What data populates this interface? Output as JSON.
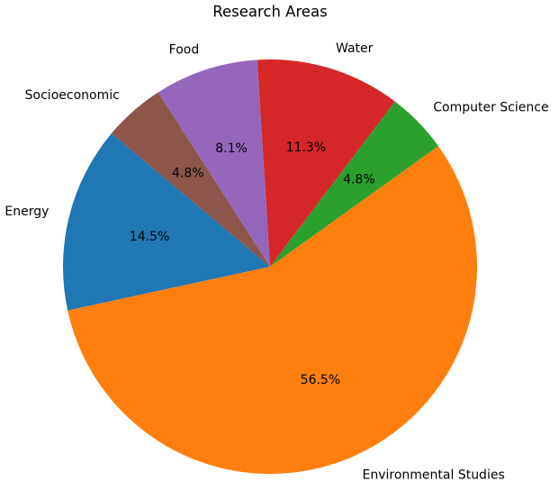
{
  "chart_data": {
    "type": "pie",
    "title": "Research Areas",
    "categories": [
      "Energy",
      "Environmental Studies",
      "Computer Science",
      "Water",
      "Food",
      "Socioeconomic"
    ],
    "values": [
      14.5,
      56.5,
      4.8,
      11.3,
      8.1,
      4.8
    ],
    "value_labels": [
      "14.5%",
      "56.5%",
      "4.8%",
      "11.3%",
      "8.1%",
      "4.8%"
    ],
    "colors": [
      "#1f77b4",
      "#ff7f0e",
      "#2ca02c",
      "#d62728",
      "#9467bd",
      "#8c564b"
    ]
  }
}
